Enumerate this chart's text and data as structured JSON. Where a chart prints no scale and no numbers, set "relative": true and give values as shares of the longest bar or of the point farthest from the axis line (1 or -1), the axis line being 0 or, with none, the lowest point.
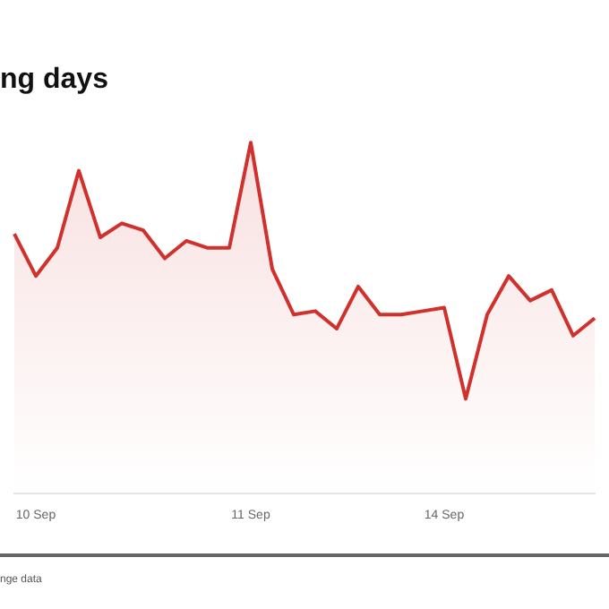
{
  "chart_data": {
    "type": "area",
    "title": "ng days",
    "relative": true,
    "marker": "none",
    "legend": false,
    "categories": [
      null,
      "10 Sep",
      null,
      null,
      null,
      null,
      null,
      null,
      null,
      null,
      null,
      "11 Sep",
      null,
      null,
      null,
      null,
      null,
      null,
      null,
      null,
      "14 Sep",
      null,
      null,
      null,
      null,
      null,
      null,
      null
    ],
    "series": [
      {
        "color": "#d0312d",
        "values": [
          0.74,
          0.62,
          0.7,
          0.92,
          0.73,
          0.77,
          0.75,
          0.67,
          0.72,
          0.7,
          0.7,
          1,
          0.64,
          0.51,
          0.52,
          0.47,
          0.59,
          0.51,
          0.51,
          0.52,
          0.53,
          0.27,
          0.51,
          0.62,
          0.55,
          0.58,
          0.45,
          0.5
        ]
      }
    ],
    "annotations": [
      "nge data"
    ]
  }
}
